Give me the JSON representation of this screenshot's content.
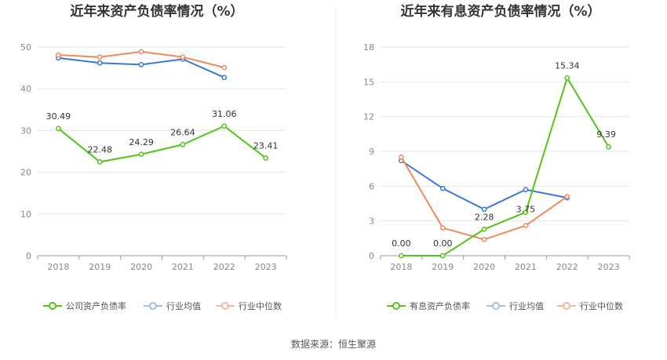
{
  "source_label": "数据来源：恒生聚源",
  "chart_data": [
    {
      "type": "line",
      "title": "近年来资产负债率情况（%）",
      "categories": [
        "2018",
        "2019",
        "2020",
        "2021",
        "2022",
        "2023"
      ],
      "ylim": [
        0,
        50
      ],
      "yticks": [
        "0",
        "10",
        "20",
        "30",
        "40",
        "50"
      ],
      "grid": true,
      "legend_position": "bottom",
      "series": [
        {
          "name": "公司资产负债率",
          "color": "#52c41a",
          "values": [
            30.49,
            22.48,
            24.29,
            26.64,
            31.06,
            23.41
          ],
          "labels": [
            "30.49",
            "22.48",
            "24.29",
            "26.64",
            "31.06",
            "23.41"
          ]
        },
        {
          "name": "行业均值",
          "color": "#3a77d6",
          "values": [
            47.4,
            46.2,
            45.8,
            47.1,
            42.7,
            null
          ],
          "labels": []
        },
        {
          "name": "行业中位数",
          "color": "#f08a5d",
          "values": [
            48.1,
            47.6,
            48.9,
            47.6,
            45.1,
            null
          ],
          "labels": []
        }
      ]
    },
    {
      "type": "line",
      "title": "近年来有息资产负债率情况（%）",
      "categories": [
        "2018",
        "2019",
        "2020",
        "2021",
        "2022",
        "2023"
      ],
      "ylim": [
        0,
        18
      ],
      "yticks": [
        "0",
        "3",
        "6",
        "9",
        "12",
        "15",
        "18"
      ],
      "grid": true,
      "legend_position": "bottom",
      "series": [
        {
          "name": "有息资产负债率",
          "color": "#52c41a",
          "values": [
            0.0,
            0.0,
            2.28,
            3.75,
            15.34,
            9.39
          ],
          "labels": [
            "0.00",
            "0.00",
            "2.28",
            "3.75",
            "15.34",
            "9.39"
          ]
        },
        {
          "name": "行业均值",
          "color": "#3a77d6",
          "values": [
            8.2,
            5.8,
            4.0,
            5.7,
            5.0,
            null
          ],
          "labels": []
        },
        {
          "name": "行业中位数",
          "color": "#f08a5d",
          "values": [
            8.5,
            2.4,
            1.4,
            2.6,
            5.1,
            null
          ],
          "labels": []
        }
      ]
    }
  ]
}
